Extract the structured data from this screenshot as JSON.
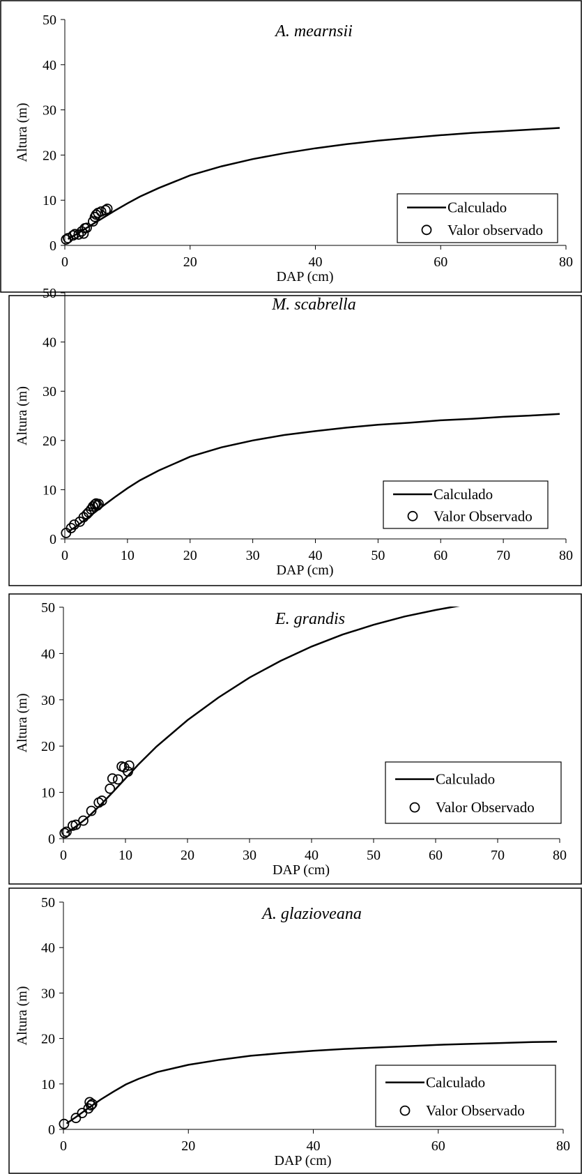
{
  "chart_data": [
    {
      "type": "line",
      "title": "A. mearnsii",
      "xlabel": "DAP (cm)",
      "ylabel": "Altura (m)",
      "xlim": [
        0,
        80
      ],
      "ylim": [
        0,
        50
      ],
      "xticks": [
        0,
        20,
        40,
        60,
        80
      ],
      "yticks": [
        0,
        10,
        20,
        30,
        40,
        50
      ],
      "legend_position": "bottom-right",
      "series": [
        {
          "name": "Calculado",
          "style": "line",
          "x": [
            0.5,
            2,
            4,
            6,
            8,
            10,
            12,
            15,
            20,
            25,
            30,
            35,
            40,
            45,
            50,
            55,
            60,
            65,
            70,
            75,
            79
          ],
          "y": [
            1.4,
            2.6,
            4.3,
            6.0,
            7.7,
            9.3,
            10.8,
            12.7,
            15.5,
            17.5,
            19.1,
            20.4,
            21.5,
            22.4,
            23.2,
            23.8,
            24.4,
            24.9,
            25.3,
            25.7,
            26.0
          ]
        },
        {
          "name": "Valor observado",
          "style": "markers",
          "x": [
            0.2,
            0.5,
            1.3,
            1.6,
            2.2,
            2.7,
            3.0,
            3.2,
            3.5,
            4.5,
            4.8,
            5.0,
            5.3,
            5.8,
            6.5,
            6.8
          ],
          "y": [
            1.3,
            1.6,
            2.2,
            2.5,
            2.4,
            3.1,
            2.6,
            3.8,
            3.9,
            5.3,
            6.3,
            6.8,
            7.2,
            7.5,
            7.8,
            8.1
          ]
        }
      ]
    },
    {
      "type": "line",
      "title": "M. scabrella",
      "xlabel": "DAP (cm)",
      "ylabel": "Altura (m)",
      "xlim": [
        0,
        80
      ],
      "ylim": [
        0,
        50
      ],
      "xticks": [
        0,
        10,
        20,
        30,
        40,
        50,
        60,
        70,
        80
      ],
      "yticks": [
        0,
        10,
        20,
        30,
        40,
        50
      ],
      "legend_position": "bottom-right",
      "series": [
        {
          "name": "Calculado",
          "style": "line",
          "x": [
            0.5,
            2,
            4,
            6,
            8,
            10,
            12,
            15,
            20,
            25,
            30,
            35,
            40,
            45,
            50,
            55,
            60,
            65,
            70,
            75,
            79
          ],
          "y": [
            1.4,
            2.7,
            4.6,
            6.6,
            8.5,
            10.3,
            11.9,
            13.9,
            16.7,
            18.6,
            20.0,
            21.1,
            21.9,
            22.6,
            23.2,
            23.6,
            24.1,
            24.4,
            24.8,
            25.1,
            25.4
          ]
        },
        {
          "name": "Valor Observado",
          "style": "markers",
          "x": [
            0.2,
            1.0,
            1.5,
            2.4,
            3.0,
            3.5,
            3.8,
            4.2,
            4.5,
            4.8,
            5.0,
            5.2,
            5.4
          ],
          "y": [
            1.2,
            2.2,
            2.9,
            3.5,
            4.4,
            5.0,
            5.4,
            6.0,
            6.6,
            7.0,
            7.2,
            6.8,
            7.1
          ]
        }
      ]
    },
    {
      "type": "line",
      "title": "E. grandis",
      "xlabel": "DAP (cm)",
      "ylabel": "Altura (m)",
      "xlim": [
        0,
        80
      ],
      "ylim": [
        0,
        50
      ],
      "xticks": [
        0,
        10,
        20,
        30,
        40,
        50,
        60,
        70,
        80
      ],
      "yticks": [
        0,
        10,
        20,
        30,
        40,
        50
      ],
      "legend_position": "bottom-right",
      "series": [
        {
          "name": "Calculado",
          "style": "line",
          "x": [
            0.5,
            2,
            4,
            6,
            8,
            10,
            12,
            15,
            20,
            25,
            30,
            35,
            40,
            45,
            50,
            55,
            60,
            65,
            69
          ],
          "y": [
            1.3,
            2.6,
            4.7,
            7.3,
            10.1,
            13.0,
            15.9,
            19.9,
            25.6,
            30.5,
            34.8,
            38.4,
            41.5,
            44.1,
            46.2,
            48.0,
            49.4,
            50.6,
            51.5
          ]
        },
        {
          "name": "Valor Observado",
          "style": "markers",
          "x": [
            0.2,
            0.5,
            1.5,
            2.0,
            3.2,
            4.5,
            5.7,
            6.2,
            7.5,
            7.9,
            8.8,
            9.4,
            9.8,
            10.4,
            10.6
          ],
          "y": [
            1.2,
            1.5,
            2.8,
            3.0,
            3.9,
            6.0,
            7.8,
            8.2,
            10.8,
            13.0,
            12.8,
            15.6,
            15.4,
            14.5,
            15.8
          ]
        }
      ]
    },
    {
      "type": "line",
      "title": "A. glazioveana",
      "xlabel": "DAP (cm)",
      "ylabel": "Altura (m)",
      "xlim": [
        0,
        80
      ],
      "ylim": [
        0,
        50
      ],
      "xticks": [
        0,
        20,
        40,
        60,
        80
      ],
      "yticks": [
        0,
        10,
        20,
        30,
        40,
        50
      ],
      "legend_position": "bottom-right",
      "series": [
        {
          "name": "Calculado",
          "style": "line",
          "x": [
            0.5,
            2,
            4,
            6,
            8,
            10,
            12,
            15,
            20,
            25,
            30,
            35,
            40,
            45,
            50,
            55,
            60,
            65,
            70,
            75,
            79
          ],
          "y": [
            1.3,
            2.7,
            4.7,
            6.6,
            8.3,
            9.9,
            11.1,
            12.6,
            14.2,
            15.3,
            16.2,
            16.8,
            17.3,
            17.7,
            18.0,
            18.3,
            18.6,
            18.8,
            19.0,
            19.2,
            19.3
          ]
        },
        {
          "name": "Valor Observado",
          "style": "markers",
          "x": [
            0.1,
            2.0,
            3.0,
            4.0,
            4.2,
            4.4,
            4.6
          ],
          "y": [
            1.2,
            2.5,
            3.6,
            4.6,
            6.0,
            5.3,
            5.6
          ]
        }
      ]
    }
  ]
}
